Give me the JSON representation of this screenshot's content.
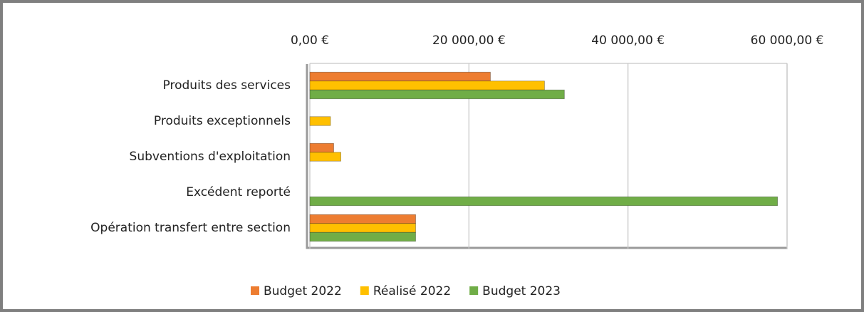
{
  "chart_data": {
    "type": "bar",
    "orientation": "horizontal",
    "categories": [
      "Produits des services",
      "Produits exceptionnels",
      "Subventions d'exploitation",
      "Excédent reporté",
      "Opération transfert entre section"
    ],
    "series": [
      {
        "name": "Budget 2022",
        "color": "#ed7d31",
        "values": [
          22700,
          0,
          3000,
          0,
          13300
        ]
      },
      {
        "name": "Réalisé 2022",
        "color": "#ffc000",
        "values": [
          29500,
          2600,
          3900,
          0,
          13300
        ]
      },
      {
        "name": "Budget 2023",
        "color": "#70ad47",
        "values": [
          32000,
          0,
          0,
          58800,
          13300
        ]
      }
    ],
    "xlim": [
      0,
      60000
    ],
    "xticks": [
      {
        "value": 0,
        "label": "0,00 €"
      },
      {
        "value": 20000,
        "label": "20 000,00 €"
      },
      {
        "value": 40000,
        "label": "40 000,00 €"
      },
      {
        "value": 60000,
        "label": "60 000,00 €"
      }
    ],
    "grid": true,
    "legend": "bottom"
  }
}
